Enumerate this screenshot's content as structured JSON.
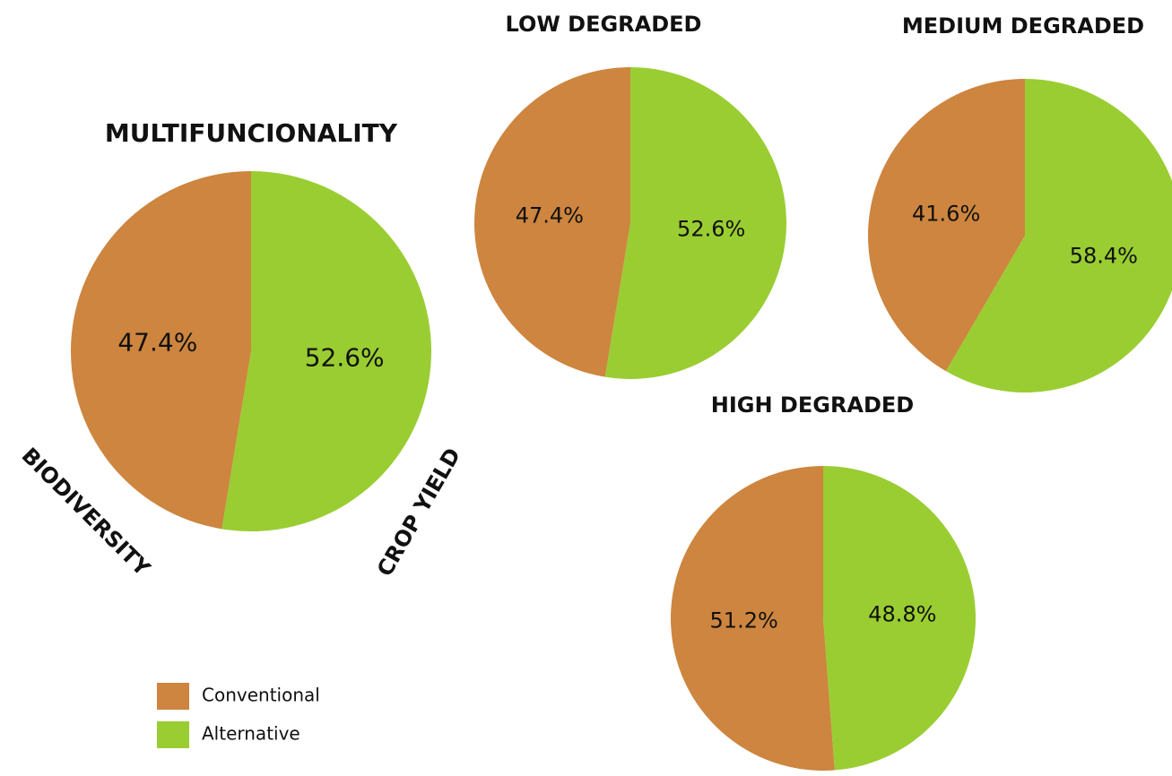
{
  "chart_data": [
    {
      "type": "pie",
      "title": "MULTIFUNCIONALITY",
      "categories": [
        "Conventional",
        "Alternative"
      ],
      "values": [
        47.4,
        52.6
      ],
      "value_labels": [
        "47.4%",
        "52.6%"
      ],
      "colors": [
        "#cd853f",
        "#9acd32"
      ],
      "annotations": [
        "BIODIVERSITY",
        "CROP YIELD"
      ]
    },
    {
      "type": "pie",
      "title": "LOW DEGRADED",
      "values": [
        47.4,
        52.6
      ],
      "value_labels": [
        "47.4%",
        "52.6%"
      ],
      "colors": [
        "#cd853f",
        "#9acd32"
      ]
    },
    {
      "type": "pie",
      "title": "MEDIUM DEGRADED",
      "values": [
        41.6,
        58.4
      ],
      "value_labels": [
        "41.6%",
        "58.4%"
      ],
      "colors": [
        "#cd853f",
        "#9acd32"
      ]
    },
    {
      "type": "pie",
      "title": "HIGH DEGRADED",
      "values": [
        51.2,
        48.8
      ],
      "value_labels": [
        "51.2%",
        "48.8%"
      ],
      "colors": [
        "#cd853f",
        "#9acd32"
      ]
    }
  ]
}
